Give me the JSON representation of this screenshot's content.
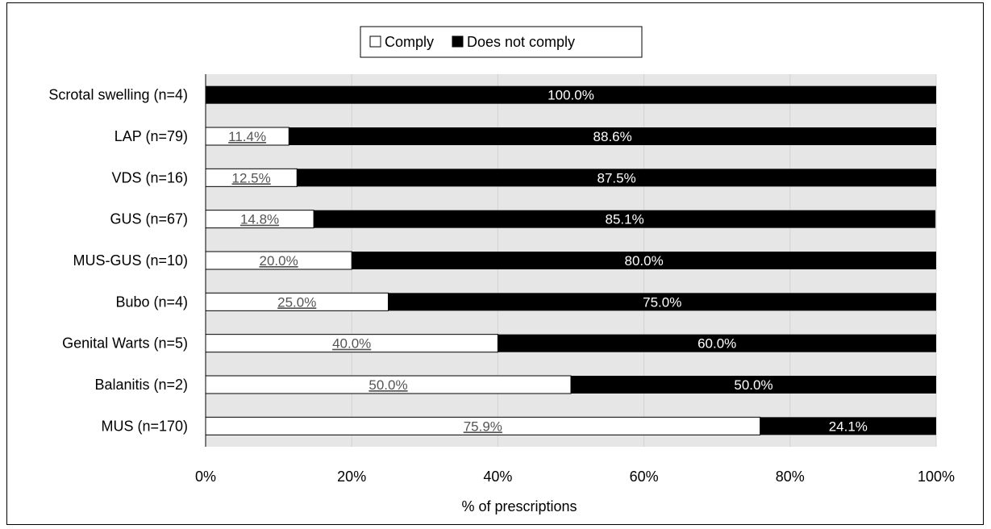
{
  "chart_data": {
    "type": "bar",
    "orientation": "horizontal-stacked-100",
    "categories": [
      "Scrotal swelling (n=4)",
      "LAP (n=79)",
      "VDS (n=16)",
      "GUS (n=67)",
      "MUS-GUS (n=10)",
      "Bubo (n=4)",
      "Genital Warts (n=5)",
      "Balanitis (n=2)",
      "MUS (n=170)"
    ],
    "series": [
      {
        "name": "Comply",
        "color": "#ffffff",
        "values": [
          0,
          11.4,
          12.5,
          14.8,
          20.0,
          25.0,
          40.0,
          50.0,
          75.9
        ],
        "labels": [
          "",
          "11.4%",
          "12.5%",
          "14.8%",
          "20.0%",
          "25.0%",
          "40.0%",
          "50.0%",
          "75.9%"
        ]
      },
      {
        "name": "Does not comply",
        "color": "#000000",
        "values": [
          100.0,
          88.6,
          87.5,
          85.1,
          80.0,
          75.0,
          60.0,
          50.0,
          24.1
        ],
        "labels": [
          "100.0%",
          "88.6%",
          "87.5%",
          "85.1%",
          "80.0%",
          "75.0%",
          "60.0%",
          "50.0%",
          "24.1%"
        ]
      }
    ],
    "xlabel": "% of prescriptions",
    "ylabel": "",
    "xlim": [
      0,
      100
    ],
    "xticks": [
      "0%",
      "20%",
      "40%",
      "60%",
      "80%",
      "100%"
    ],
    "grid": true,
    "legend": "top-center",
    "plot_background": "#e6e6e6"
  }
}
